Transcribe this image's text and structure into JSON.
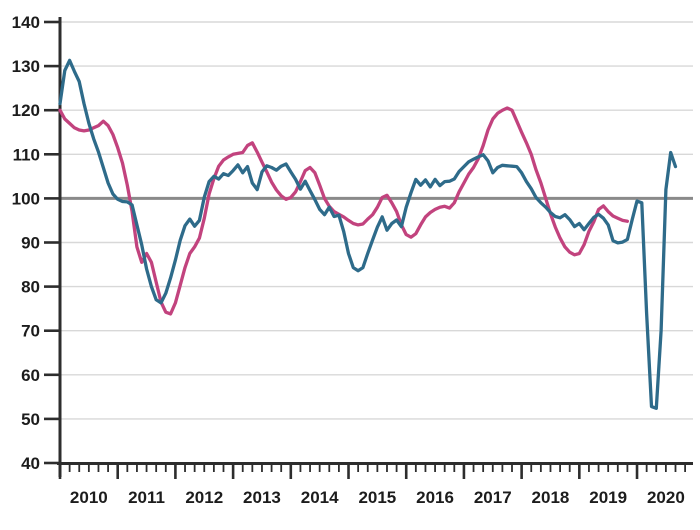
{
  "chart_data": {
    "type": "line",
    "title": "",
    "legend": "none",
    "grid": true,
    "colors": {
      "teal_series": "#2e6b8a",
      "pink_series": "#c2437e",
      "gridline": "#d8d8d8",
      "reference_line": "#8a8a8a",
      "axis": "#2d2d2d",
      "label": "#1c1c1c"
    },
    "y_axis": {
      "min": 40,
      "max": 140,
      "step": 10,
      "ticks": [
        40,
        50,
        60,
        70,
        80,
        90,
        100,
        110,
        120,
        130,
        140
      ],
      "tick_labels": [
        "40",
        "50",
        "60",
        "70",
        "80",
        "90",
        "100",
        "110",
        "120",
        "130",
        "140"
      ],
      "reference_line": 100
    },
    "x_axis": {
      "domain": [
        2010,
        2020.97
      ],
      "years": [
        2010,
        2011,
        2012,
        2013,
        2014,
        2015,
        2016,
        2017,
        2018,
        2019,
        2020
      ],
      "labels": [
        "2010",
        "2011",
        "2012",
        "2013",
        "2014",
        "2015",
        "2016",
        "2017",
        "2018",
        "2019",
        "2020"
      ],
      "minor_tick_interval_months": 2
    },
    "series": [
      {
        "name": "pink-series",
        "color_key": "pink_series",
        "start_year": 2010,
        "start_month": 1,
        "frequency": "monthly",
        "values": [
          120,
          118,
          117,
          116,
          115.5,
          115.3,
          115.5,
          116,
          116.5,
          117.5,
          116.5,
          114.5,
          111.5,
          108,
          103,
          97,
          89,
          85.5,
          87.5,
          85.5,
          81,
          76.5,
          74.2,
          73.8,
          76.3,
          80.3,
          84.3,
          87.5,
          89,
          91,
          95.5,
          101,
          104.5,
          107.3,
          108.7,
          109.4,
          110,
          110.2,
          110.4,
          112,
          112.6,
          110.5,
          108.2,
          106,
          103.7,
          101.9,
          100.6,
          99.8,
          100.2,
          101.5,
          103.8,
          106.3,
          107,
          105.8,
          103,
          100,
          98.2,
          97,
          96.4,
          95.8,
          95,
          94.3,
          94,
          94.2,
          95.3,
          96.3,
          98,
          100.2,
          100.7,
          99,
          97,
          94,
          91.8,
          91.2,
          92,
          94,
          95.8,
          96.8,
          97.5,
          98,
          98.2,
          97.8,
          99,
          101.5,
          103.5,
          105.5,
          107,
          109,
          112,
          115.5,
          118,
          119.3,
          120,
          120.5,
          120,
          117.5,
          115,
          112.6,
          110,
          106.5,
          103.5,
          100,
          96.5,
          93.5,
          91,
          89,
          87.8,
          87.2,
          87.5,
          89.5,
          92.5,
          94.7,
          97.5,
          98.3,
          97,
          96,
          95.5,
          95,
          94.8
        ]
      },
      {
        "name": "teal-series",
        "color_key": "teal_series",
        "start_year": 2010,
        "start_month": 1,
        "frequency": "monthly",
        "values": [
          121.5,
          129,
          131.3,
          128.8,
          126.5,
          121.5,
          117,
          113.5,
          110.5,
          107,
          103.5,
          101,
          99.8,
          99.3,
          99.2,
          98.5,
          94,
          89.5,
          84,
          80,
          77,
          76.3,
          78.5,
          82,
          86,
          90.5,
          93.8,
          95.3,
          93.7,
          95,
          100.3,
          103.8,
          105,
          104.4,
          105.6,
          105.2,
          106.3,
          107.6,
          105.8,
          107.2,
          103.5,
          102,
          106,
          107.4,
          107,
          106.4,
          107.3,
          107.8,
          106,
          104.3,
          102.1,
          103.9,
          101.8,
          99.7,
          97.5,
          96.3,
          98,
          95.9,
          96.2,
          92.5,
          87.5,
          84.3,
          83.6,
          84.3,
          87.5,
          90.6,
          93.5,
          95.8,
          92.8,
          94.3,
          95.1,
          93.6,
          98,
          101.3,
          104.3,
          103,
          104.2,
          102.6,
          104.3,
          102.9,
          103.8,
          103.9,
          104.4,
          106.1,
          107.2,
          108.3,
          108.9,
          109.4,
          109.9,
          108.5,
          105.8,
          107,
          107.5,
          107.4,
          107.3,
          107.2,
          105.8,
          103.8,
          102.2,
          100.2,
          99,
          98,
          96.8,
          95.9,
          95.6,
          96.3,
          95.2,
          93.6,
          94.3,
          92.9,
          94.3,
          95.7,
          96.4,
          95.5,
          94,
          90.4,
          89.9,
          90.1,
          90.7,
          95.2,
          99.4,
          99,
          74,
          52.8,
          52.4,
          70,
          102,
          110.4,
          107.2
        ]
      }
    ]
  }
}
